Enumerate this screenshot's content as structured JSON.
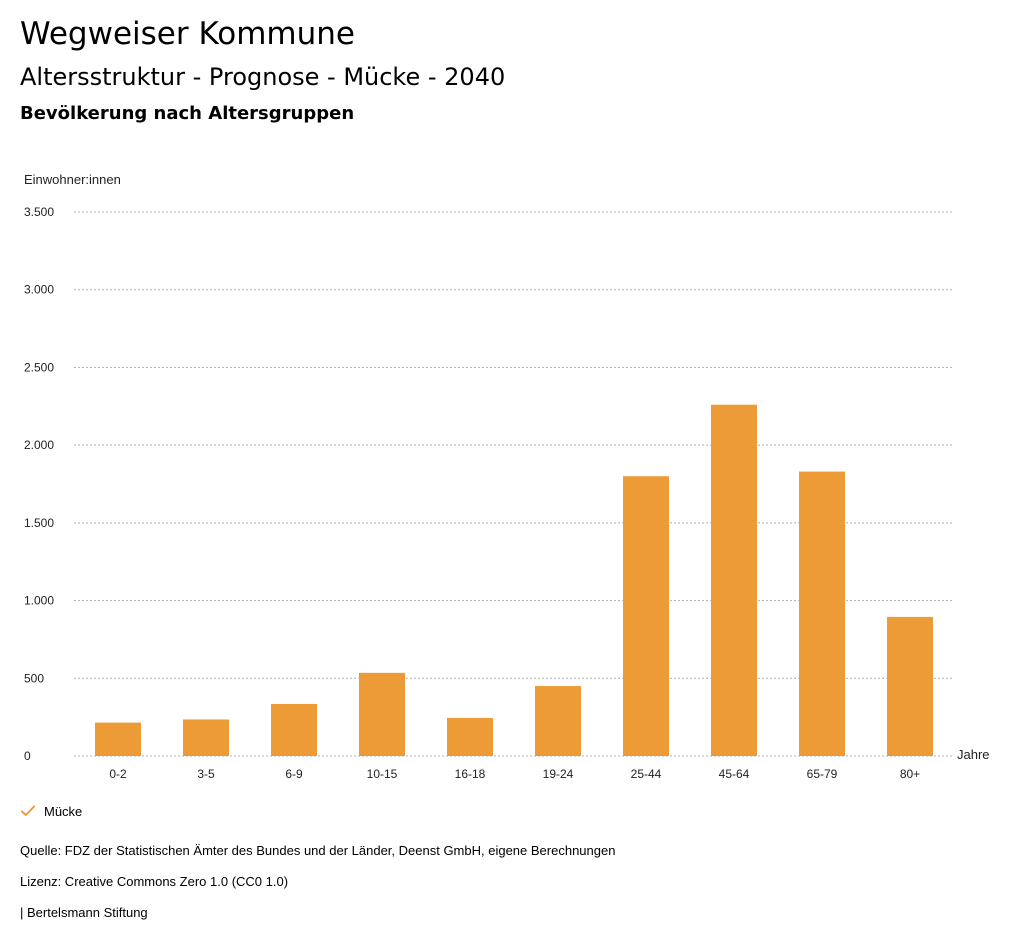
{
  "header": {
    "title": "Wegweiser Kommune",
    "subtitle": "Altersstruktur - Prognose - Mücke - 2040",
    "section": "Bevölkerung nach Altersgruppen"
  },
  "colors": {
    "bar": "#ed9b37",
    "grid": "#b0b0b0",
    "text": "#222222"
  },
  "legend": {
    "icon": "check-icon",
    "label": "Mücke"
  },
  "footer": {
    "source": "Quelle: FDZ der Statistischen Ämter des Bundes und der Länder, Deenst GmbH, eigene Berechnungen",
    "license": "Lizenz: Creative Commons Zero 1.0 (CC0 1.0)",
    "publisher": "| Bertelsmann Stiftung"
  },
  "chart_data": {
    "type": "bar",
    "ylabel": "Einwohner:innen",
    "xlabel": "Jahre",
    "ylim": [
      0,
      3500
    ],
    "yticks": [
      0,
      500,
      1000,
      1500,
      2000,
      2500,
      3000,
      3500
    ],
    "ytick_labels": [
      "0",
      "500",
      "1.000",
      "1.500",
      "2.000",
      "2.500",
      "3.000",
      "3.500"
    ],
    "grid": true,
    "legend_position": "bottom-left",
    "categories": [
      "0-2",
      "3-5",
      "6-9",
      "10-15",
      "16-18",
      "19-24",
      "25-44",
      "45-64",
      "65-79",
      "80+"
    ],
    "series": [
      {
        "name": "Mücke",
        "values": [
          215,
          235,
          335,
          535,
          245,
          450,
          1800,
          2260,
          1830,
          895
        ]
      }
    ]
  }
}
